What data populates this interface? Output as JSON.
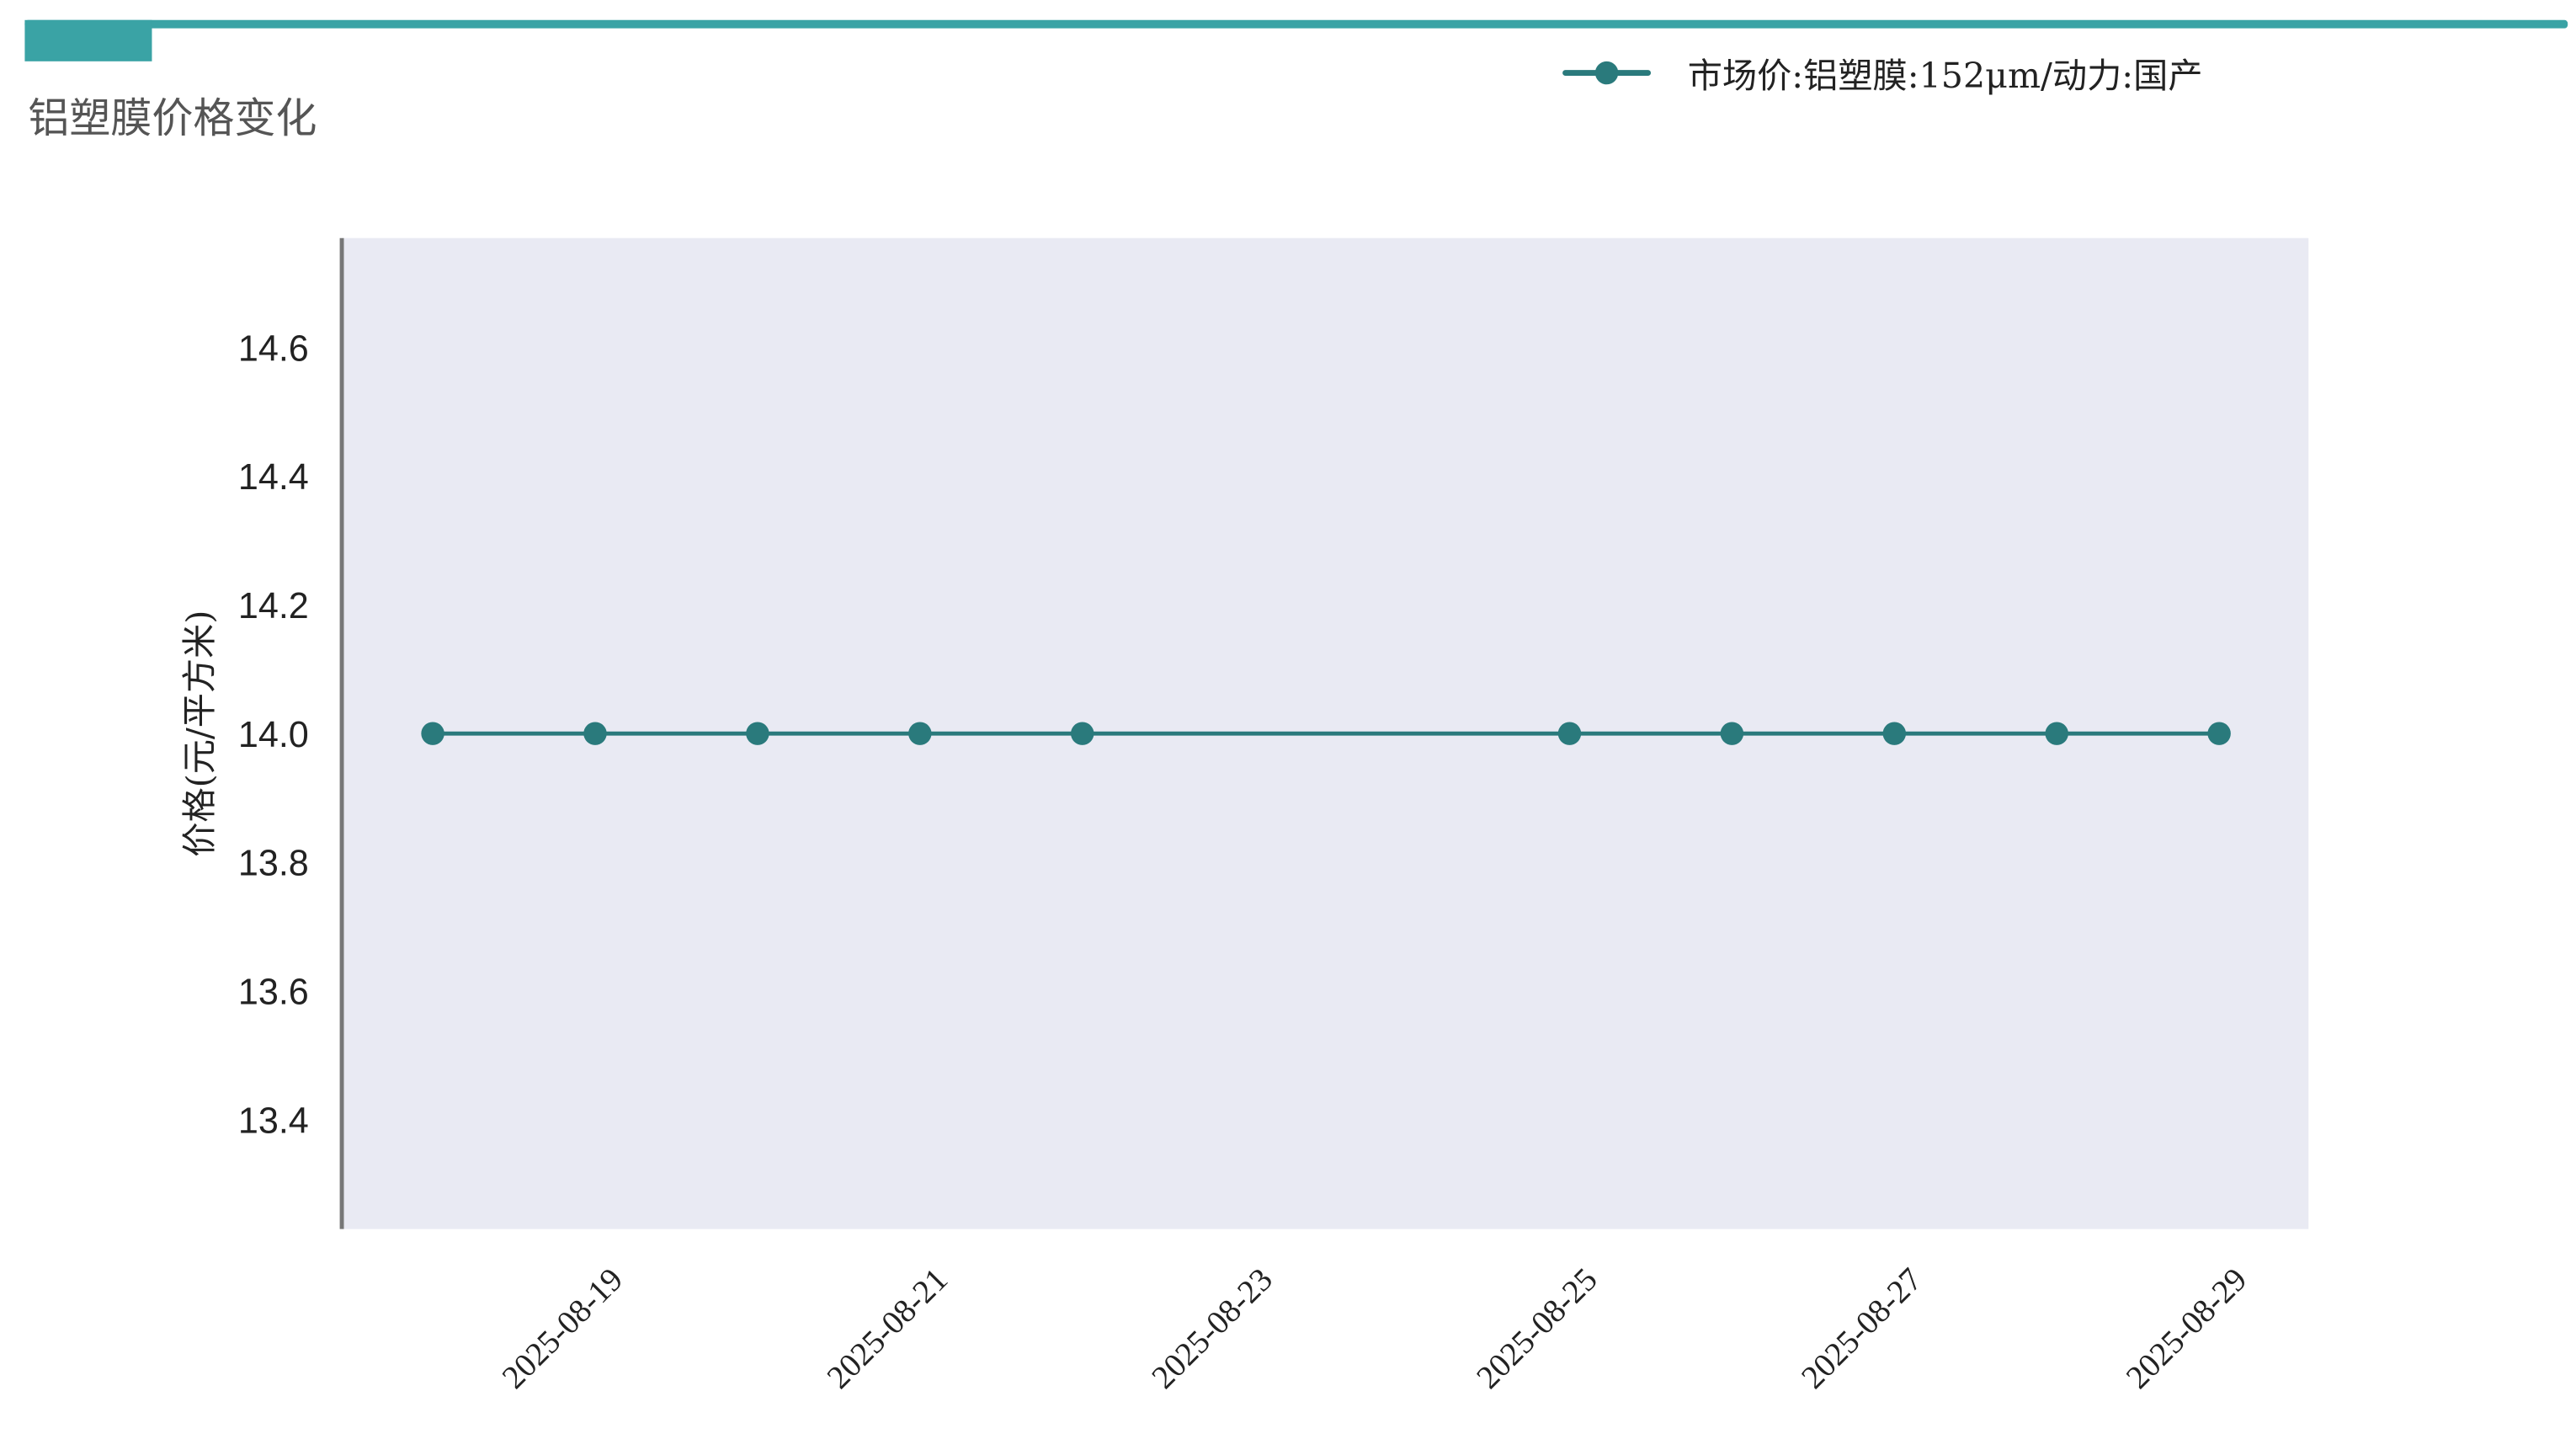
{
  "title": "铝塑膜价格变化",
  "colors": {
    "accent": "#3aa3a5",
    "series": "#2a7a7c",
    "plot_bg": "#e9eaf3",
    "axis": "#777777"
  },
  "chart_data": {
    "type": "line",
    "title": "铝塑膜价格变化",
    "xlabel": "",
    "ylabel": "价格(元/平方米)",
    "x": [
      "2025-08-18",
      "2025-08-19",
      "2025-08-20",
      "2025-08-21",
      "2025-08-22",
      "2025-08-25",
      "2025-08-26",
      "2025-08-27",
      "2025-08-28",
      "2025-08-29"
    ],
    "series": [
      {
        "name": "市场价:铝塑膜:152μm/动力:国产",
        "values": [
          14.0,
          14.0,
          14.0,
          14.0,
          14.0,
          14.0,
          14.0,
          14.0,
          14.0,
          14.0
        ],
        "marker": "circle"
      }
    ],
    "xticks": [
      "2025-08-19",
      "2025-08-21",
      "2025-08-23",
      "2025-08-25",
      "2025-08-27",
      "2025-08-29"
    ],
    "yticks": [
      "13.4",
      "13.6",
      "13.8",
      "14.0",
      "14.2",
      "14.4",
      "14.6"
    ],
    "ylim": [
      13.23,
      14.77
    ],
    "xlim": [
      "2025-08-17",
      "2025-08-30"
    ],
    "grid": false,
    "legend": "top-right"
  }
}
